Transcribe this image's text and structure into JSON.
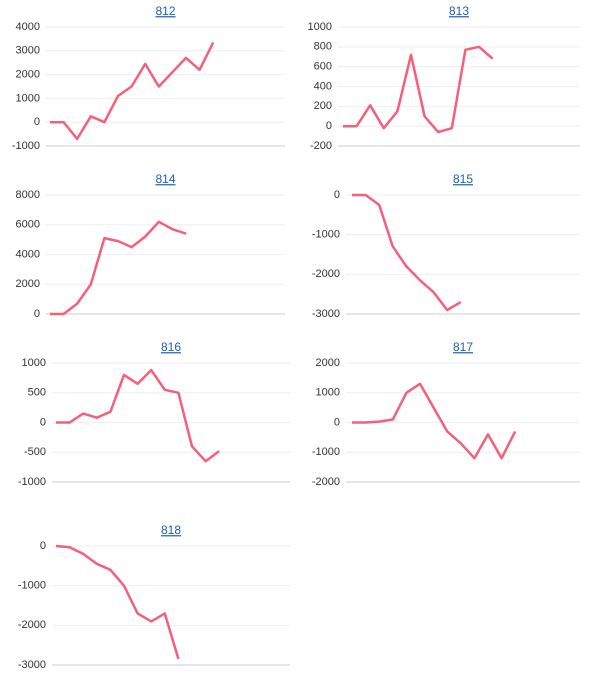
{
  "chart_data": [
    {
      "type": "line",
      "title": "812",
      "color": "#f4607a",
      "values": [
        0,
        0,
        -700,
        250,
        0,
        1100,
        1500,
        2450,
        1500,
        2100,
        2700,
        2200,
        3350
      ],
      "ylim": [
        -1000,
        4000
      ],
      "yticks": [
        -1000,
        0,
        1000,
        2000,
        3000,
        4000
      ],
      "grid": true
    },
    {
      "type": "line",
      "title": "813",
      "color": "#f4607a",
      "values": [
        0,
        0,
        210,
        -20,
        150,
        720,
        100,
        -60,
        -20,
        770,
        800,
        680
      ],
      "ylim": [
        -200,
        1000
      ],
      "yticks": [
        -200,
        0,
        200,
        400,
        600,
        800,
        1000
      ],
      "grid": true
    },
    {
      "type": "line",
      "title": "814",
      "color": "#f4607a",
      "values": [
        0,
        0,
        700,
        2000,
        5100,
        4900,
        4500,
        5200,
        6200,
        5700,
        5400
      ],
      "ylim": [
        0,
        8000
      ],
      "yticks": [
        0,
        2000,
        4000,
        6000,
        8000
      ],
      "grid": true
    },
    {
      "type": "line",
      "title": "815",
      "color": "#f4607a",
      "values": [
        0,
        0,
        -250,
        -1300,
        -1800,
        -2150,
        -2450,
        -2900,
        -2700
      ],
      "ylim": [
        -3000,
        0
      ],
      "yticks": [
        -3000,
        -2000,
        -1000,
        0
      ],
      "grid": true
    },
    {
      "type": "line",
      "title": "816",
      "color": "#f4607a",
      "values": [
        0,
        0,
        150,
        80,
        180,
        800,
        650,
        880,
        550,
        500,
        -400,
        -650,
        -480
      ],
      "ylim": [
        -1000,
        1000
      ],
      "yticks": [
        -1000,
        -500,
        0,
        500,
        1000
      ],
      "grid": true
    },
    {
      "type": "line",
      "title": "817",
      "color": "#f4607a",
      "values": [
        0,
        0,
        30,
        100,
        1000,
        1300,
        500,
        -300,
        -700,
        -1200,
        -400,
        -1200,
        -300
      ],
      "ylim": [
        -2000,
        2000
      ],
      "yticks": [
        -2000,
        -1000,
        0,
        1000,
        2000
      ],
      "grid": true
    },
    {
      "type": "line",
      "title": "818",
      "color": "#f4607a",
      "values": [
        0,
        -30,
        -200,
        -450,
        -600,
        -1000,
        -1700,
        -1900,
        -1700,
        -2850
      ],
      "ylim": [
        -3000,
        0
      ],
      "yticks": [
        -3000,
        -2000,
        -1000,
        0
      ],
      "grid": true
    }
  ]
}
